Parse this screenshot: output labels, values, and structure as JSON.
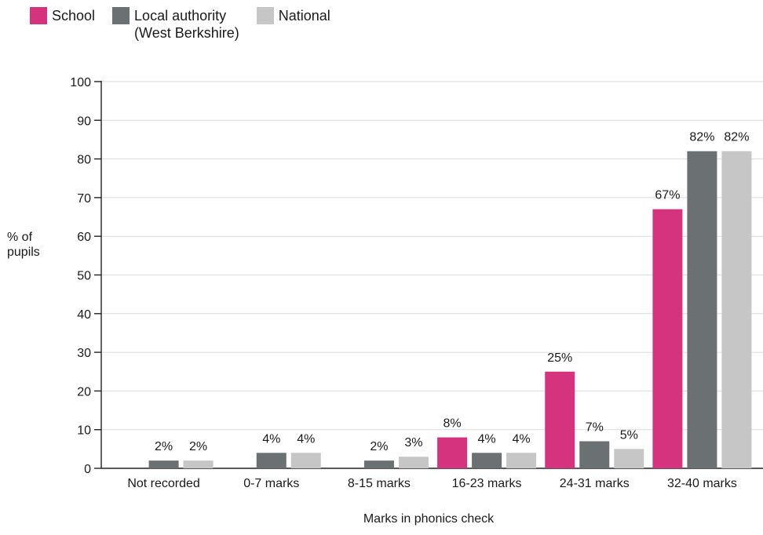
{
  "chart_data": {
    "type": "bar",
    "categories": [
      "Not recorded",
      "0-7 marks",
      "8-15 marks",
      "16-23 marks",
      "24-31 marks",
      "32-40 marks"
    ],
    "series": [
      {
        "name": "School",
        "color": "#d6337f",
        "values": [
          null,
          null,
          null,
          8,
          25,
          67
        ],
        "labels": [
          "",
          "",
          "",
          "8%",
          "25%",
          "67%"
        ]
      },
      {
        "name": "Local authority\n(West Berkshire)",
        "color": "#6b7073",
        "values": [
          2,
          4,
          2,
          4,
          7,
          82
        ],
        "labels": [
          "2%",
          "4%",
          "2%",
          "4%",
          "7%",
          "82%"
        ]
      },
      {
        "name": "National",
        "color": "#c6c6c6",
        "values": [
          2,
          4,
          3,
          4,
          5,
          82
        ],
        "labels": [
          "2%",
          "4%",
          "3%",
          "4%",
          "5%",
          "82%"
        ]
      }
    ],
    "ylim": [
      0,
      100
    ],
    "yticks": [
      "0",
      "10",
      "20",
      "30",
      "40",
      "50",
      "60",
      "70",
      "80",
      "90",
      "100"
    ],
    "xlabel": "Marks in phonics check",
    "ylabel": "% of pupils",
    "grid": true,
    "legend": "top-left"
  }
}
